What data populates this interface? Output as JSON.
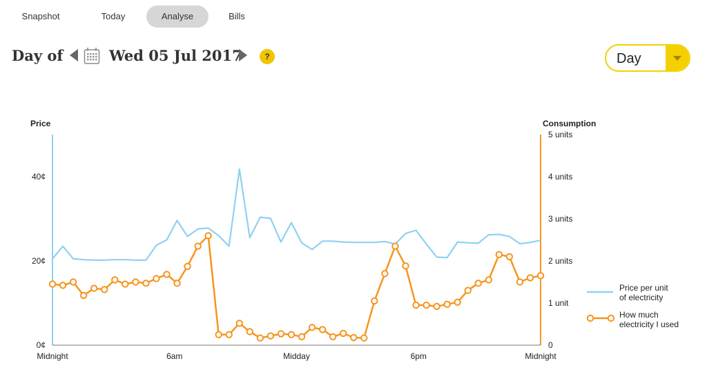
{
  "nav": {
    "tabs": [
      {
        "label": "Snapshot",
        "active": false
      },
      {
        "label": "Today",
        "active": false
      },
      {
        "label": "Analyse",
        "active": true
      },
      {
        "label": "Bills",
        "active": false
      }
    ]
  },
  "header": {
    "day_of": "Day of",
    "date": "Wed 05 Jul 2017",
    "help_glyph": "?"
  },
  "period_select": {
    "value": "Day"
  },
  "colors": {
    "price": "#8fd0f2",
    "consumption": "#f7941d",
    "accent_yellow": "#f5d000"
  },
  "chart_data": {
    "type": "line",
    "title": "",
    "x_tick_labels": [
      "Midnight",
      "6am",
      "Midday",
      "6pm",
      "Midnight"
    ],
    "left_axis": {
      "title": "Price",
      "ticks": [
        "0¢",
        "20¢",
        "40¢"
      ],
      "tick_values": [
        0,
        20,
        40
      ],
      "range": [
        0,
        50
      ]
    },
    "right_axis": {
      "title": "Consumption",
      "ticks": [
        "0",
        "1 unit",
        "2 units",
        "3 units",
        "4 units",
        "5 units"
      ],
      "tick_values": [
        0,
        1,
        2,
        3,
        4,
        5
      ],
      "range": [
        0,
        5
      ]
    },
    "legend_position": "right",
    "series": [
      {
        "name": "Price per unit of electricity",
        "axis": "left",
        "marker": "none",
        "values": [
          20.5,
          23.5,
          20.5,
          20.3,
          20.2,
          20.2,
          20.3,
          20.3,
          20.2,
          20.2,
          23.7,
          25,
          29.6,
          25.8,
          27.6,
          27.8,
          26,
          23.5,
          41.8,
          25.5,
          30.4,
          30.1,
          24.5,
          29.1,
          24.3,
          22.7,
          24.7,
          24.7,
          24.5,
          24.4,
          24.4,
          24.4,
          24.6,
          24,
          26.5,
          27.3,
          24,
          20.9,
          20.8,
          24.5,
          24.3,
          24.2,
          26.2,
          26.3,
          25.8,
          24.1,
          24.4,
          24.9
        ]
      },
      {
        "name": "How much electricity I used",
        "axis": "right",
        "marker": "circle",
        "values": [
          1.45,
          1.42,
          1.5,
          1.18,
          1.35,
          1.32,
          1.55,
          1.45,
          1.5,
          1.47,
          1.58,
          1.68,
          1.47,
          1.87,
          2.35,
          2.6,
          0.25,
          0.25,
          0.52,
          0.32,
          0.17,
          0.22,
          0.27,
          0.25,
          0.2,
          0.42,
          0.37,
          0.2,
          0.28,
          0.18,
          0.17,
          1.05,
          1.7,
          2.35,
          1.88,
          0.95,
          0.95,
          0.92,
          0.97,
          1.02,
          1.3,
          1.47,
          1.55,
          2.15,
          2.1,
          1.5,
          1.6,
          1.65
        ]
      }
    ]
  }
}
